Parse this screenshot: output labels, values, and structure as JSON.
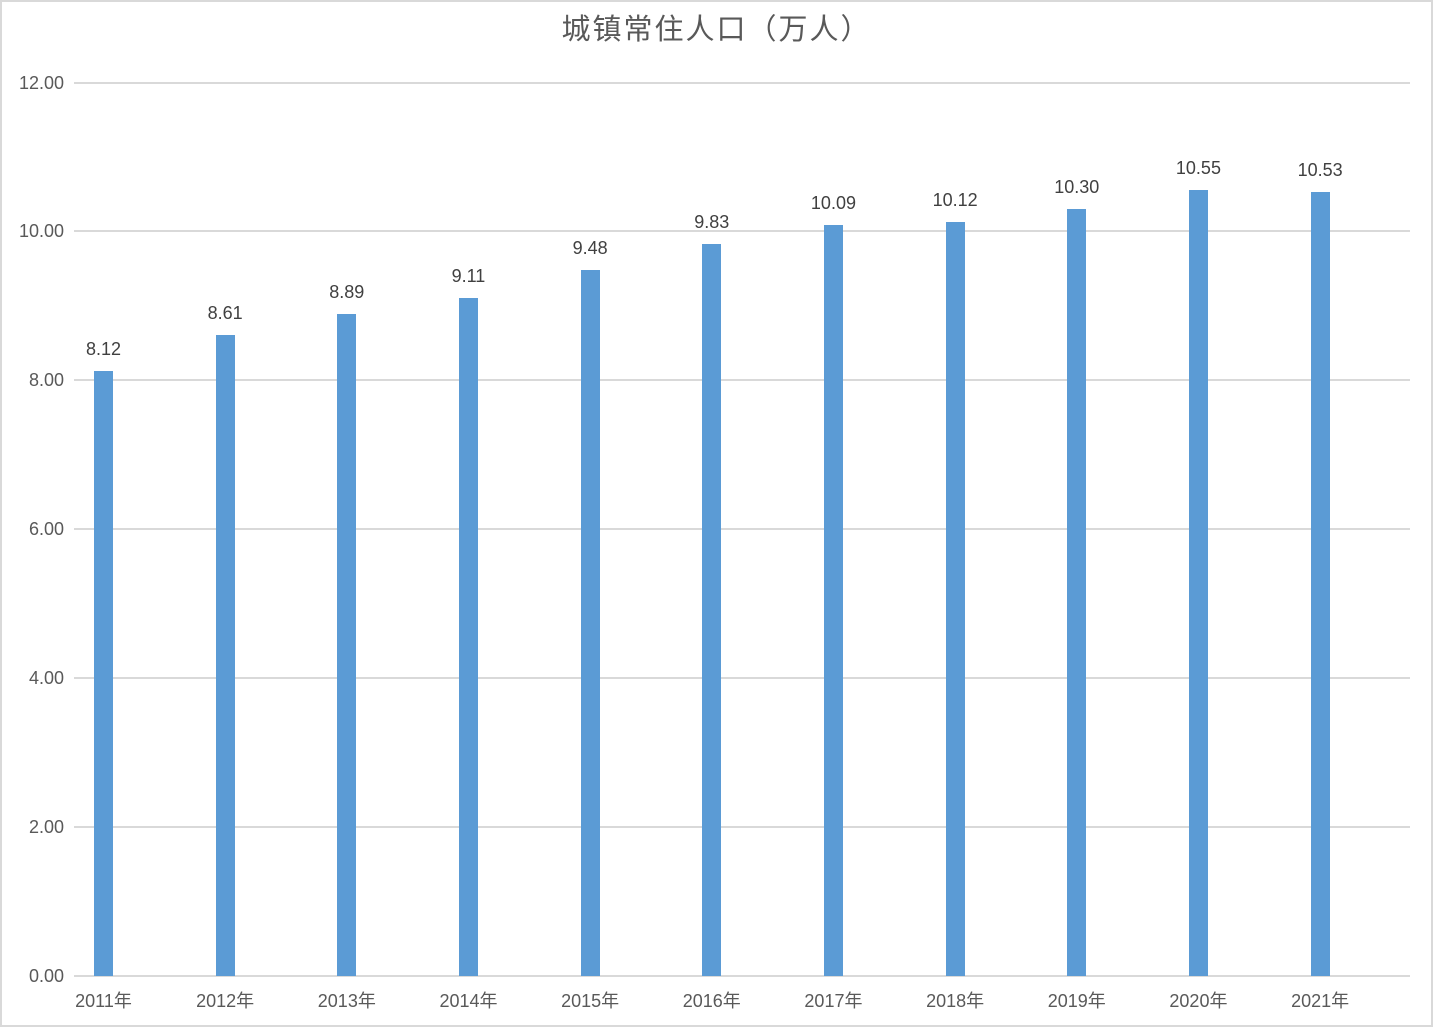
{
  "chart_data": {
    "type": "bar",
    "title": "城镇常住人口（万人）",
    "categories": [
      "2011年",
      "2012年",
      "2013年",
      "2014年",
      "2015年",
      "2016年",
      "2017年",
      "2018年",
      "2019年",
      "2020年",
      "2021年"
    ],
    "values": [
      8.12,
      8.61,
      8.89,
      9.11,
      9.48,
      9.83,
      10.09,
      10.12,
      10.3,
      10.55,
      10.53
    ],
    "data_labels": [
      "8.12",
      "8.61",
      "8.89",
      "9.11",
      "9.48",
      "9.83",
      "10.09",
      "10.12",
      "10.30",
      "10.55",
      "10.53"
    ],
    "xlabel": "",
    "ylabel": "",
    "ylim": [
      0,
      12
    ],
    "ytick_step": 2,
    "ytick_labels": [
      "0.00",
      "2.00",
      "4.00",
      "6.00",
      "8.00",
      "10.00",
      "12.00"
    ],
    "grid": true,
    "legend": "none",
    "bar_color": "#5B9BD5",
    "gridline_color": "#D9D9D9",
    "axis_line_color": "#D9D9D9",
    "axis_label_color": "#595959",
    "data_label_color": "#404040",
    "title_color": "#595959",
    "background_color": "#FFFFFF",
    "border_color": "#D9D9D9"
  }
}
